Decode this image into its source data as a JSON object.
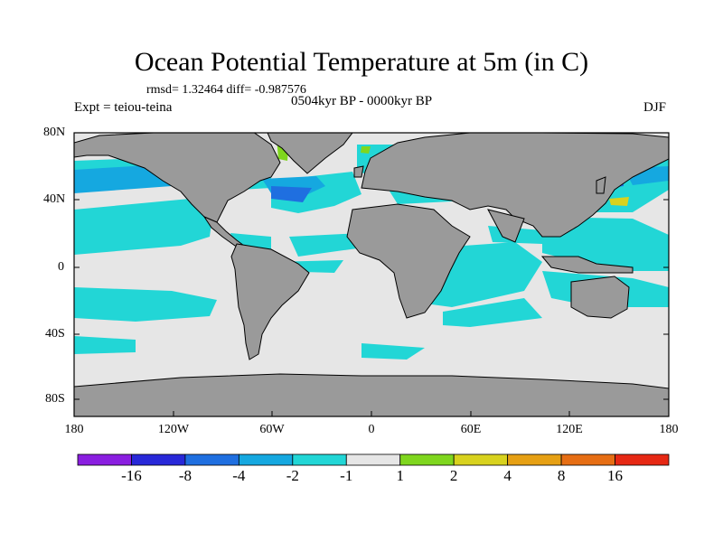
{
  "title": "Ocean Potential Temperature at 5m (in C)",
  "stats": "rmsd= 1.32464 diff= -0.987576",
  "experiment": "Expt = teiou-teina",
  "period": "0504kyr BP - 0000kyr BP",
  "season": "DJF",
  "lat_labels": [
    "80N",
    "40N",
    "0",
    "40S",
    "80S"
  ],
  "lon_labels": [
    "180",
    "120W",
    "60W",
    "0",
    "60E",
    "120E",
    "180"
  ],
  "colorbar": {
    "labels": [
      "-16",
      "-8",
      "-4",
      "-2",
      "-1",
      "1",
      "2",
      "4",
      "8",
      "16"
    ],
    "colors": [
      "#8a1ee0",
      "#2828d8",
      "#1f6fe0",
      "#15a8e0",
      "#22d6d6",
      "#e6e6e6",
      "#7fd61e",
      "#d8d21e",
      "#e6a014",
      "#e66e14",
      "#e62814"
    ]
  },
  "map_colors": {
    "land": "#9a9a9a",
    "neutral": "#e6e6e6",
    "cool": "#22d6d6",
    "cold": "#15a8e0",
    "colder": "#1f6fe0",
    "warm": "#7fd61e",
    "warmer": "#d8d21e"
  }
}
